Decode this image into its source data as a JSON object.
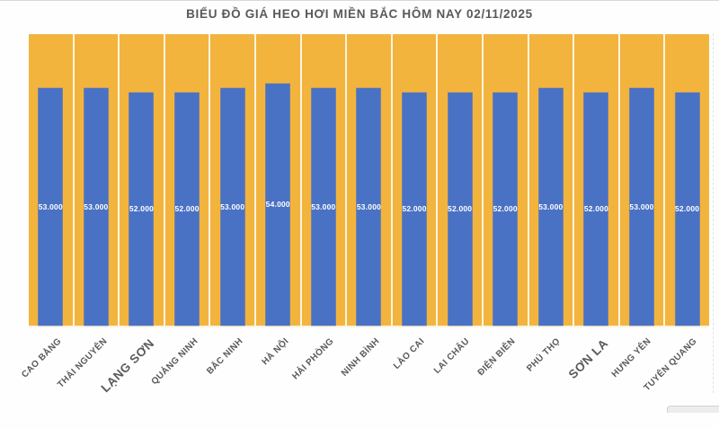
{
  "chart_data": {
    "type": "bar",
    "title": "BIỂU ĐỒ GIÁ HEO HƠI MIỀN BẮC HÔM NAY 02/11/2025",
    "categories": [
      "CAO BẰNG",
      "THÁI NGUYÊN",
      "LẠNG SƠN",
      "QUẢNG NINH",
      "BẮC NINH",
      "HÀ NỘI",
      "HẢI PHÒNG",
      "NINH BÌNH",
      "LÀO CAI",
      "LAI CHÂU",
      "ĐIỆN BIÊN",
      "PHÚ THỌ",
      "SƠN LA",
      "HƯNG YÊN",
      "TUYÊN QUANG"
    ],
    "values": [
      53000,
      53000,
      52000,
      52000,
      53000,
      54000,
      53000,
      53000,
      52000,
      52000,
      52000,
      53000,
      52000,
      53000,
      52000
    ],
    "value_labels": [
      "53.000",
      "53.000",
      "52.000",
      "52.000",
      "53.000",
      "54.000",
      "53.000",
      "53.000",
      "52.000",
      "52.000",
      "52.000",
      "53.000",
      "52.000",
      "53.000",
      "52.000"
    ],
    "xlabel": "",
    "ylabel": "",
    "ylim": [
      0,
      65000
    ],
    "legend": "none",
    "grid": "vertical-white-separators",
    "value_label_position": "inside-center",
    "x_label_rotation_deg": -45,
    "emphasized_label_indices": [
      2,
      12
    ],
    "colors": {
      "bar": "#4A72C4",
      "plot_background": "#F2B43D",
      "gridline": "rgba(255,255,255,0.85)",
      "title": "#595959",
      "axis_label": "#595959",
      "value_label": "#FFFFFF"
    }
  }
}
